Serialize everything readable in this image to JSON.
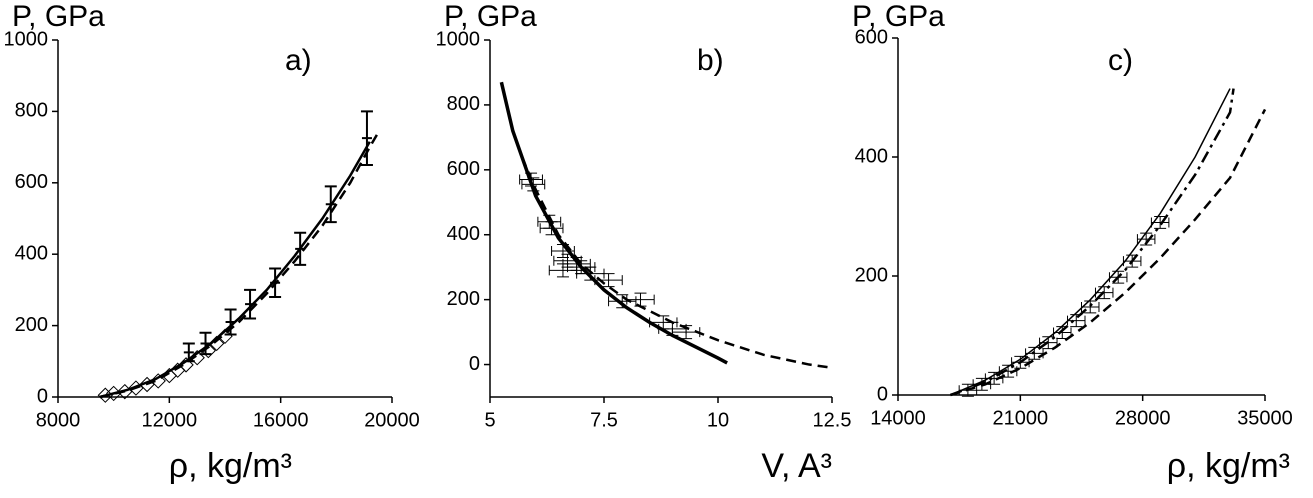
{
  "chart_data": [
    {
      "type": "line",
      "y_label": "P, GPa",
      "annotation": "a)",
      "x_label": "ρ, kg/m³",
      "xlim": [
        8000,
        20000
      ],
      "xticks": [
        8000,
        12000,
        16000,
        20000
      ],
      "ylim": [
        0,
        1000
      ],
      "yticks": [
        0,
        200,
        400,
        600,
        800,
        1000
      ],
      "series": [
        {
          "style": "solid",
          "color": "#000000",
          "x": [
            9500,
            10500,
            11500,
            12500,
            13500,
            14500,
            15500,
            16500,
            17500,
            18500,
            19200
          ],
          "values": [
            0,
            20,
            50,
            95,
            150,
            220,
            300,
            395,
            500,
            620,
            715
          ]
        },
        {
          "style": "dashed",
          "color": "#000000",
          "x": [
            9500,
            10500,
            11500,
            12500,
            13500,
            14500,
            15500,
            16500,
            17500,
            18500,
            19200,
            19500
          ],
          "values": [
            0,
            18,
            45,
            90,
            145,
            210,
            290,
            380,
            480,
            600,
            700,
            740
          ]
        },
        {
          "style": "diamond",
          "color": "#000000",
          "x": [
            9700,
            10000,
            10400,
            10800,
            11200,
            11600,
            12000,
            12300,
            12600,
            13000,
            13400,
            13700,
            14000
          ],
          "values": [
            5,
            10,
            15,
            25,
            35,
            45,
            60,
            75,
            90,
            110,
            130,
            150,
            170
          ]
        },
        {
          "style": "errorbar",
          "color": "#000000",
          "x": [
            12700,
            13300,
            14200,
            14900,
            15800,
            16700,
            17800,
            19100
          ],
          "values": [
            125,
            150,
            210,
            260,
            320,
            415,
            540,
            725
          ],
          "yerr": [
            25,
            30,
            35,
            40,
            40,
            45,
            50,
            75
          ]
        }
      ]
    },
    {
      "type": "line",
      "y_label": "P, GPa",
      "annotation": "b)",
      "x_label": "V, A³",
      "xlim": [
        5,
        12.5
      ],
      "xticks": [
        5,
        7.5,
        10,
        12.5
      ],
      "ylim": [
        -100,
        1000
      ],
      "yticks": [
        0,
        200,
        400,
        600,
        800,
        1000
      ],
      "series": [
        {
          "style": "solid-thick",
          "color": "#000000",
          "x": [
            5.25,
            5.5,
            6,
            6.5,
            7,
            7.5,
            8,
            8.5,
            9,
            9.5,
            10,
            10.2
          ],
          "values": [
            870,
            720,
            520,
            390,
            300,
            230,
            175,
            130,
            90,
            55,
            20,
            5
          ]
        },
        {
          "style": "dashed",
          "color": "#000000",
          "x": [
            5.7,
            6,
            6.5,
            7,
            7.5,
            8,
            9,
            10,
            11,
            12,
            12.5
          ],
          "values": [
            640,
            540,
            400,
            310,
            250,
            200,
            130,
            75,
            30,
            0,
            -10
          ]
        },
        {
          "style": "errorbar",
          "color": "#000000",
          "x": [
            5.9,
            5.95,
            6.3,
            6.35,
            6.6,
            6.7,
            6.9,
            6.6,
            7.0,
            7.2,
            7.6,
            7.9,
            8.3,
            8.8,
            9.0,
            9.3
          ],
          "values": [
            570,
            555,
            440,
            420,
            350,
            320,
            310,
            290,
            300,
            280,
            260,
            195,
            200,
            130,
            110,
            100
          ],
          "xerr": [
            0.25,
            0.25,
            0.25,
            0.25,
            0.25,
            0.3,
            0.3,
            0.3,
            0.3,
            0.3,
            0.3,
            0.3,
            0.3,
            0.3,
            0.3,
            0.3
          ],
          "yerr": [
            20,
            20,
            20,
            20,
            20,
            20,
            20,
            20,
            20,
            20,
            20,
            20,
            20,
            20,
            20,
            20
          ]
        }
      ]
    },
    {
      "type": "line",
      "y_label": "P, GPa",
      "annotation": "c)",
      "x_label": "ρ, kg/m³",
      "xlim": [
        14000,
        35000
      ],
      "xticks": [
        14000,
        21000,
        28000,
        35000
      ],
      "ylim": [
        0,
        600
      ],
      "yticks": [
        0,
        200,
        400,
        600
      ],
      "series": [
        {
          "style": "solid-thin",
          "color": "#000000",
          "x": [
            17000,
            19000,
            21000,
            23000,
            25000,
            27000,
            29000,
            31000,
            33000
          ],
          "values": [
            0,
            25,
            60,
            105,
            160,
            225,
            305,
            400,
            515
          ]
        },
        {
          "style": "dashdot",
          "color": "#000000",
          "x": [
            17000,
            19000,
            21000,
            23000,
            25000,
            27000,
            29000,
            31000,
            33000,
            33200
          ],
          "values": [
            0,
            22,
            55,
            98,
            150,
            210,
            285,
            370,
            475,
            515
          ]
        },
        {
          "style": "dashed",
          "color": "#000000",
          "x": [
            17000,
            19000,
            21000,
            23000,
            25000,
            27000,
            29000,
            31000,
            33000,
            35000
          ],
          "values": [
            0,
            18,
            45,
            80,
            122,
            172,
            230,
            295,
            365,
            480
          ]
        },
        {
          "style": "errorbar",
          "color": "#000000",
          "x": [
            18000,
            18800,
            19500,
            20300,
            21000,
            21800,
            22600,
            23400,
            24200,
            25000,
            25800,
            26600,
            27400,
            28200,
            29000
          ],
          "values": [
            8,
            18,
            28,
            40,
            55,
            70,
            88,
            105,
            125,
            148,
            172,
            198,
            225,
            262,
            290
          ],
          "xerr": [
            500,
            500,
            500,
            500,
            500,
            500,
            500,
            500,
            500,
            500,
            500,
            500,
            500,
            500,
            500
          ],
          "yerr": [
            10,
            10,
            10,
            10,
            10,
            10,
            10,
            10,
            10,
            10,
            10,
            10,
            10,
            10,
            10
          ]
        }
      ]
    }
  ]
}
